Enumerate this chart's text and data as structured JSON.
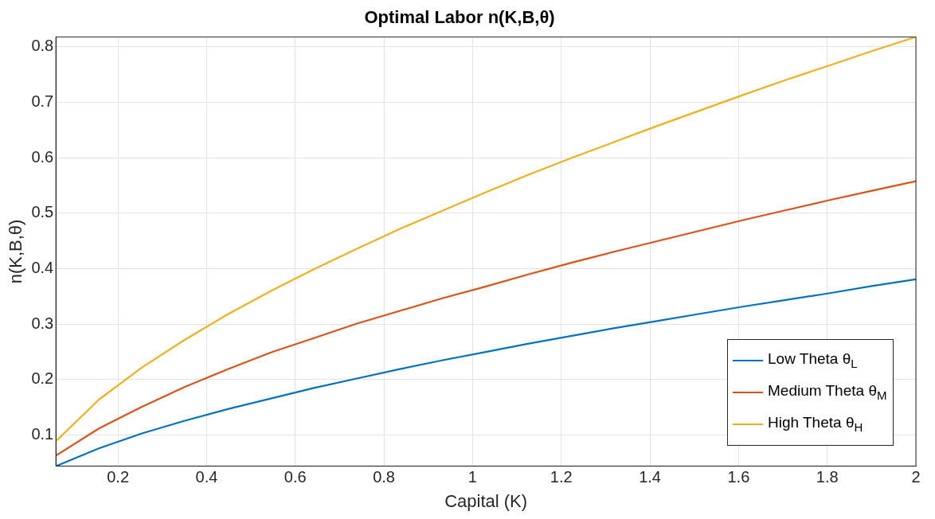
{
  "chart_data": {
    "type": "line",
    "title": "Optimal Labor n(K,B,θ)",
    "xlabel": "Capital (K)",
    "ylabel": "n(K,B,θ)",
    "x": [
      0.06,
      0.157,
      0.254,
      0.351,
      0.448,
      0.545,
      0.642,
      0.739,
      0.836,
      0.933,
      1.03,
      1.127,
      1.224,
      1.321,
      1.418,
      1.515,
      1.612,
      1.709,
      1.806,
      1.903,
      2.0
    ],
    "series": [
      {
        "name": "Low Theta θ$_{L}$",
        "color": "#0072bd",
        "values": [
          0.044,
          0.076,
          0.103,
          0.126,
          0.147,
          0.166,
          0.185,
          0.202,
          0.219,
          0.235,
          0.25,
          0.265,
          0.279,
          0.293,
          0.306,
          0.319,
          0.332,
          0.344,
          0.356,
          0.369,
          0.381
        ]
      },
      {
        "name": "Medium Theta θ$_{M}$",
        "color": "#d95319",
        "values": [
          0.063,
          0.112,
          0.151,
          0.187,
          0.219,
          0.249,
          0.275,
          0.301,
          0.324,
          0.347,
          0.368,
          0.39,
          0.411,
          0.431,
          0.45,
          0.469,
          0.488,
          0.506,
          0.524,
          0.541,
          0.558
        ]
      },
      {
        "name": "High Theta θ$_{H}$",
        "color": "#edb120",
        "values": [
          0.089,
          0.164,
          0.222,
          0.272,
          0.318,
          0.36,
          0.399,
          0.436,
          0.472,
          0.505,
          0.538,
          0.57,
          0.6,
          0.629,
          0.658,
          0.686,
          0.714,
          0.741,
          0.767,
          0.793,
          0.818
        ]
      }
    ],
    "xlim": [
      0.06,
      2
    ],
    "ylim": [
      0.044,
      0.818
    ],
    "xticks": [
      0.2,
      0.4,
      0.6,
      0.8,
      1,
      1.2,
      1.4,
      1.6,
      1.8,
      2
    ],
    "yticks": [
      0.1,
      0.2,
      0.3,
      0.4,
      0.5,
      0.6,
      0.7,
      0.8
    ],
    "grid": true,
    "legend": "bottom right",
    "marker": "none",
    "line_style": "solid"
  }
}
